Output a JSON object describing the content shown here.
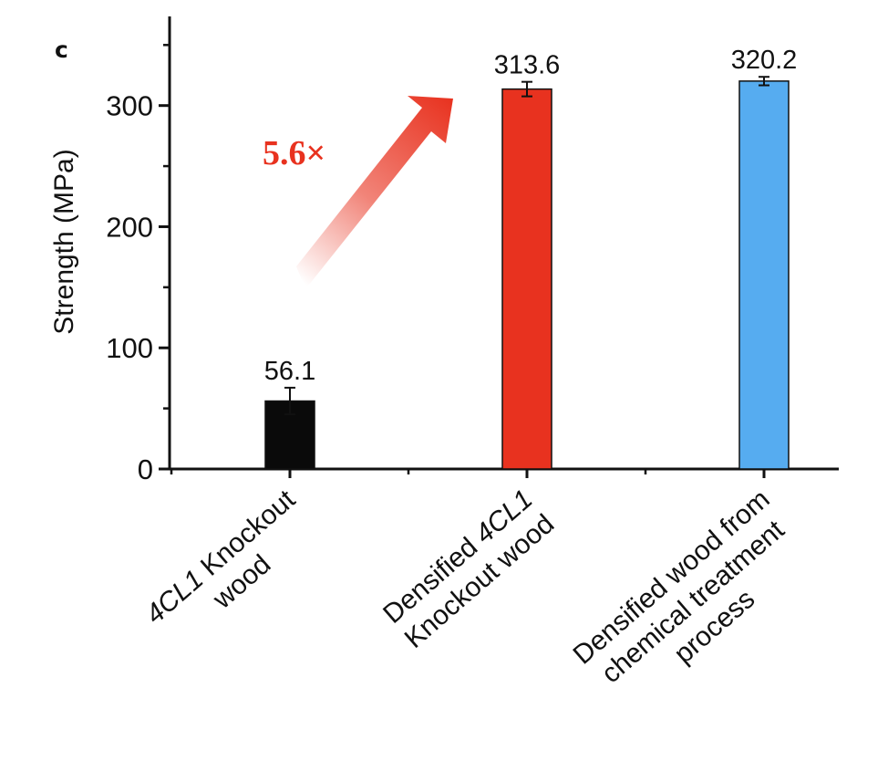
{
  "chart_data": {
    "type": "bar",
    "panel_label": "c",
    "ylabel": "Strength (MPa)",
    "ylim": [
      0,
      375
    ],
    "yticks": [
      0,
      100,
      200,
      300
    ],
    "grid": false,
    "categories": [
      {
        "parts": [
          {
            "text": "4CL1",
            "italic": true
          },
          {
            "text": " Knockout",
            "italic": false
          },
          {
            "text": "\nwood",
            "italic": false
          }
        ]
      },
      {
        "parts": [
          {
            "text": "Densified ",
            "italic": false
          },
          {
            "text": "4CL1",
            "italic": true
          },
          {
            "text": "\nKnockout wood",
            "italic": false
          }
        ]
      },
      {
        "parts": [
          {
            "text": "Densified  wood from\nchemical treatment\nprocess",
            "italic": false
          }
        ]
      }
    ],
    "values": [
      56.1,
      313.6,
      320.2
    ],
    "errors": [
      11,
      6,
      3.5
    ],
    "value_labels": [
      "56.1",
      "313.6",
      "320.2"
    ],
    "colors": [
      "#0a0a0a",
      "#e8321f",
      "#56acf0"
    ],
    "annotation": {
      "text": "5.6×",
      "color": "#e8321f",
      "from_bar": 0,
      "to_bar": 1
    }
  }
}
